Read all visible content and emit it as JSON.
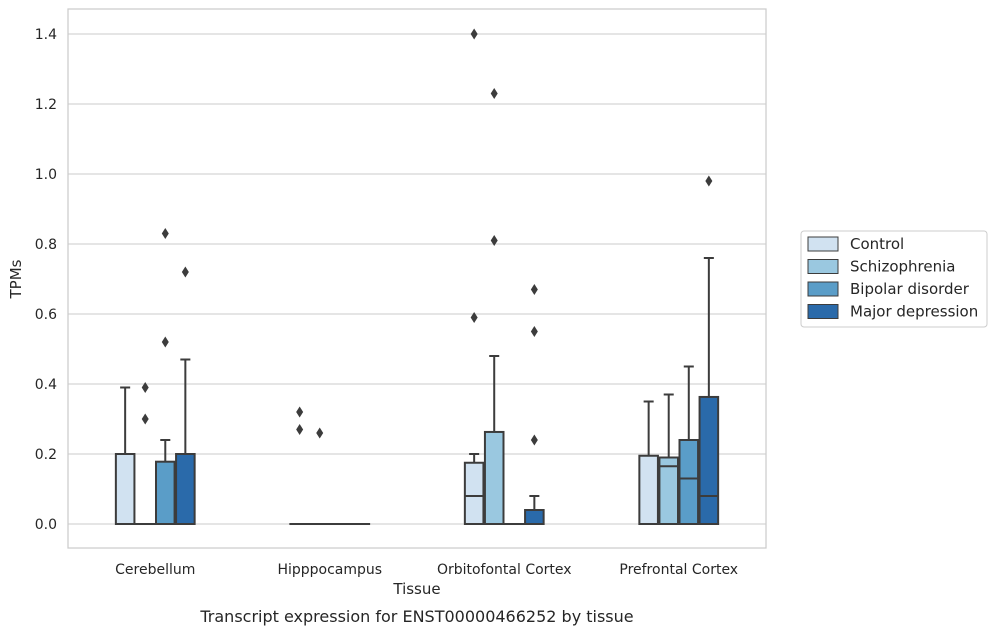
{
  "caption": "Transcript expression for ENST00000466252 by tissue",
  "chart_data": {
    "type": "box",
    "title": "",
    "xlabel": "Tissue",
    "ylabel": "TPMs",
    "ylim": [
      -0.07,
      1.47
    ],
    "yticks": [
      "0.0",
      "0.2",
      "0.4",
      "0.6",
      "0.8",
      "1.0",
      "1.2",
      "1.4"
    ],
    "grid": "horizontal",
    "legend_position": "right",
    "categories": [
      "Cerebellum",
      "Hipppocampus",
      "Orbitofontal Cortex",
      "Prefrontal Cortex"
    ],
    "series": [
      {
        "name": "Control",
        "color": "#d1e2f1",
        "boxes": [
          {
            "q1": 0.0,
            "median": 0.0,
            "q3": 0.2,
            "whisker_low": 0.0,
            "whisker_high": 0.39,
            "outliers": []
          },
          {
            "q1": 0.0,
            "median": 0.0,
            "q3": 0.0,
            "whisker_low": 0.0,
            "whisker_high": 0.0,
            "outliers": [
              0.27,
              0.32
            ]
          },
          {
            "q1": 0.0,
            "median": 0.08,
            "q3": 0.175,
            "whisker_low": 0.0,
            "whisker_high": 0.2,
            "outliers": [
              0.59,
              1.4
            ]
          },
          {
            "q1": 0.0,
            "median": 0.0,
            "q3": 0.195,
            "whisker_low": 0.0,
            "whisker_high": 0.35,
            "outliers": []
          }
        ]
      },
      {
        "name": "Schizophrenia",
        "color": "#9ac8e0",
        "boxes": [
          {
            "q1": 0.0,
            "median": 0.0,
            "q3": 0.0,
            "whisker_low": 0.0,
            "whisker_high": 0.0,
            "outliers": [
              0.3,
              0.39
            ]
          },
          {
            "q1": 0.0,
            "median": 0.0,
            "q3": 0.0,
            "whisker_low": 0.0,
            "whisker_high": 0.0,
            "outliers": [
              0.26
            ]
          },
          {
            "q1": 0.0,
            "median": 0.0,
            "q3": 0.263,
            "whisker_low": 0.0,
            "whisker_high": 0.48,
            "outliers": [
              0.81,
              1.23
            ]
          },
          {
            "q1": 0.0,
            "median": 0.165,
            "q3": 0.19,
            "whisker_low": 0.0,
            "whisker_high": 0.37,
            "outliers": []
          }
        ]
      },
      {
        "name": "Bipolar disorder",
        "color": "#5a9dc8",
        "boxes": [
          {
            "q1": 0.0,
            "median": 0.0,
            "q3": 0.178,
            "whisker_low": 0.0,
            "whisker_high": 0.24,
            "outliers": [
              0.52,
              0.83
            ]
          },
          {
            "q1": 0.0,
            "median": 0.0,
            "q3": 0.0,
            "whisker_low": 0.0,
            "whisker_high": 0.0,
            "outliers": []
          },
          {
            "q1": 0.0,
            "median": 0.0,
            "q3": 0.0,
            "whisker_low": 0.0,
            "whisker_high": 0.0,
            "outliers": []
          },
          {
            "q1": 0.0,
            "median": 0.13,
            "q3": 0.24,
            "whisker_low": 0.0,
            "whisker_high": 0.45,
            "outliers": []
          }
        ]
      },
      {
        "name": "Major depression",
        "color": "#2a6aaa",
        "boxes": [
          {
            "q1": 0.0,
            "median": 0.0,
            "q3": 0.2,
            "whisker_low": 0.0,
            "whisker_high": 0.47,
            "outliers": [
              0.72
            ]
          },
          {
            "q1": 0.0,
            "median": 0.0,
            "q3": 0.0,
            "whisker_low": 0.0,
            "whisker_high": 0.0,
            "outliers": []
          },
          {
            "q1": 0.0,
            "median": 0.0,
            "q3": 0.04,
            "whisker_low": 0.0,
            "whisker_high": 0.08,
            "outliers": [
              0.24,
              0.55,
              0.67
            ]
          },
          {
            "q1": 0.0,
            "median": 0.08,
            "q3": 0.363,
            "whisker_low": 0.0,
            "whisker_high": 0.76,
            "outliers": [
              0.98
            ]
          }
        ]
      }
    ]
  }
}
